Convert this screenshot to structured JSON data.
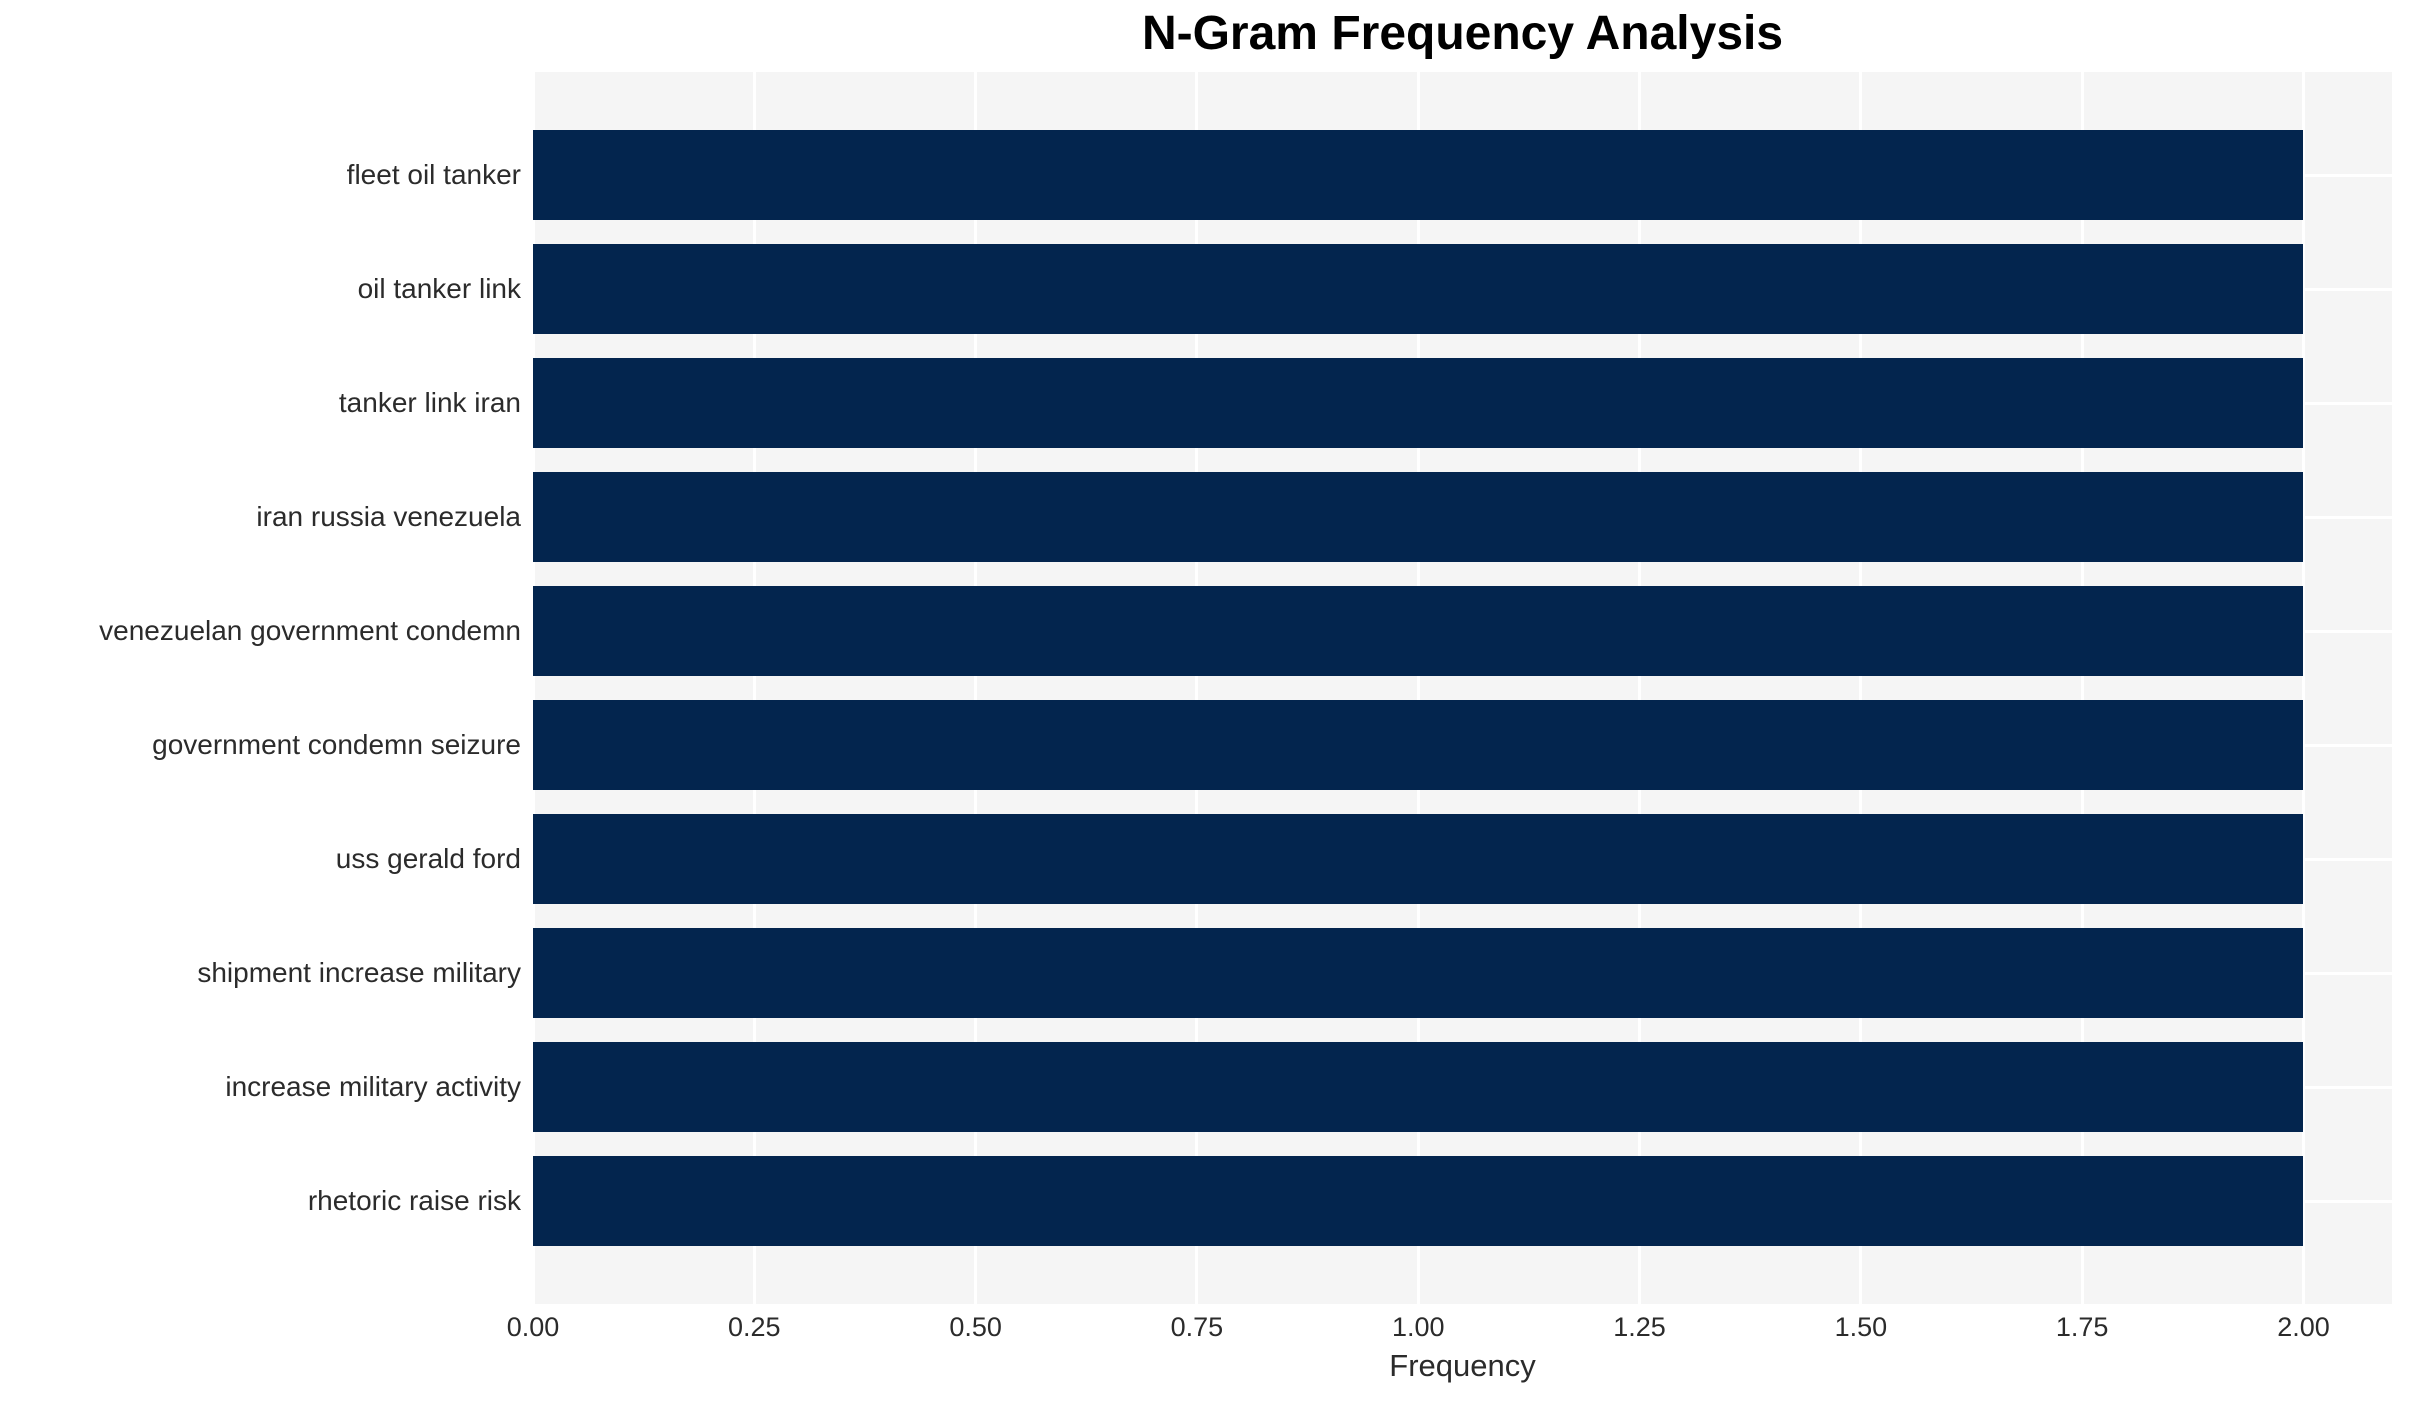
{
  "page": {
    "background_color": "#ffffff"
  },
  "chart_data": {
    "type": "bar",
    "orientation": "horizontal",
    "title": "N-Gram Frequency Analysis",
    "xlabel": "Frequency",
    "ylabel": "",
    "categories": [
      "fleet oil tanker",
      "oil tanker link",
      "tanker link iran",
      "iran russia venezuela",
      "venezuelan government condemn",
      "government condemn seizure",
      "uss gerald ford",
      "shipment increase military",
      "increase military activity",
      "rhetoric raise risk"
    ],
    "values": [
      2,
      2,
      2,
      2,
      2,
      2,
      2,
      2,
      2,
      2
    ],
    "xlim": [
      0,
      2.1
    ],
    "xticks": [
      {
        "value": 0.0,
        "label": "0.00"
      },
      {
        "value": 0.25,
        "label": "0.25"
      },
      {
        "value": 0.5,
        "label": "0.50"
      },
      {
        "value": 0.75,
        "label": "0.75"
      },
      {
        "value": 1.0,
        "label": "1.00"
      },
      {
        "value": 1.25,
        "label": "1.25"
      },
      {
        "value": 1.5,
        "label": "1.50"
      },
      {
        "value": 1.75,
        "label": "1.75"
      },
      {
        "value": 2.0,
        "label": "2.00"
      }
    ],
    "grid": true,
    "legend_visible": false,
    "colors": {
      "bar": "#03254e",
      "plot_background": "#f5f5f5",
      "gridline": "#ffffff",
      "tick_text": "#2b2b2b",
      "title_text": "#000000"
    }
  }
}
